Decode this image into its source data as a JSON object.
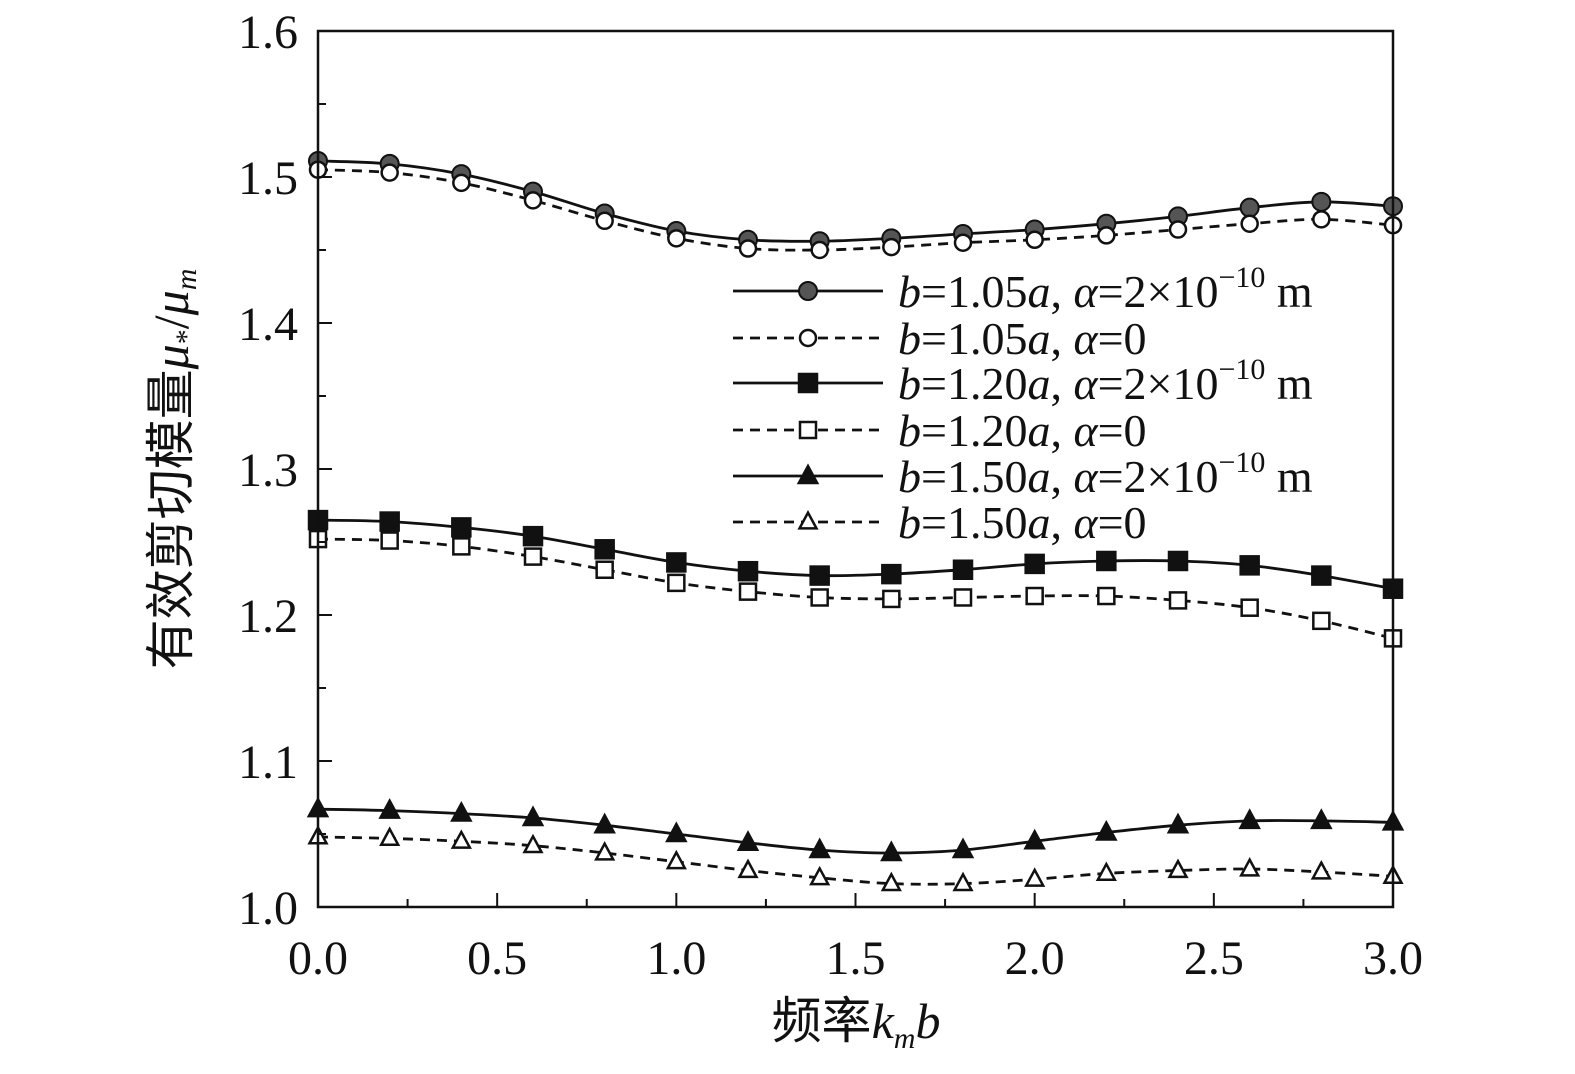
{
  "chart_data": {
    "type": "line",
    "title": "",
    "xlabel": {
      "prefix": "频率",
      "math": "k",
      "sub": "m",
      "suffix": "b"
    },
    "ylabel": {
      "prefix": "有效剪切模量",
      "num": "μ",
      "num_sub": "*",
      "slash": "/",
      "den": "μ",
      "den_sub": "m"
    },
    "xlim": [
      0.0,
      3.0
    ],
    "ylim": [
      1.0,
      1.6
    ],
    "xticks": [
      "0.0",
      "0.5",
      "1.0",
      "1.5",
      "2.0",
      "2.5",
      "3.0"
    ],
    "yticks": [
      "1.0",
      "1.1",
      "1.2",
      "1.3",
      "1.4",
      "1.5",
      "1.6"
    ],
    "x": [
      0.0,
      0.2,
      0.4,
      0.6,
      0.8,
      1.0,
      1.2,
      1.4,
      1.6,
      1.8,
      2.0,
      2.2,
      2.4,
      2.6,
      2.8,
      3.0
    ],
    "grid": false,
    "legend_position": "right",
    "series": [
      {
        "name": "b=1.05a, α=2×10⁻¹⁰ m",
        "b_label": "b",
        "b_val": "=1.05",
        "b_unit": "a",
        "sep": ", ",
        "alpha_label": "α",
        "alpha_val": "=2×10",
        "alpha_exp": "−10",
        "unit": " m",
        "marker": "circle",
        "filled": true,
        "fill_color": "#555555",
        "dashed": false,
        "values": [
          1.511,
          1.509,
          1.502,
          1.49,
          1.475,
          1.463,
          1.457,
          1.456,
          1.458,
          1.461,
          1.464,
          1.468,
          1.473,
          1.479,
          1.483,
          1.48
        ]
      },
      {
        "name": "b=1.05a, α=0",
        "b_label": "b",
        "b_val": "=1.05",
        "b_unit": "a",
        "sep": ", ",
        "alpha_label": "α",
        "alpha_val": "=0",
        "alpha_exp": "",
        "unit": "",
        "marker": "circle",
        "filled": false,
        "fill_color": "#ffffff",
        "dashed": true,
        "values": [
          1.505,
          1.503,
          1.496,
          1.484,
          1.47,
          1.458,
          1.451,
          1.45,
          1.452,
          1.455,
          1.457,
          1.46,
          1.464,
          1.468,
          1.471,
          1.467
        ]
      },
      {
        "name": "b=1.20a, α=2×10⁻¹⁰ m",
        "b_label": "b",
        "b_val": "=1.20",
        "b_unit": "a",
        "sep": ", ",
        "alpha_label": "α",
        "alpha_val": "=2×10",
        "alpha_exp": "−10",
        "unit": " m",
        "marker": "square",
        "filled": true,
        "fill_color": "#111111",
        "dashed": false,
        "values": [
          1.265,
          1.264,
          1.26,
          1.254,
          1.245,
          1.236,
          1.23,
          1.227,
          1.228,
          1.231,
          1.235,
          1.237,
          1.237,
          1.234,
          1.227,
          1.218
        ]
      },
      {
        "name": "b=1.20a, α=0",
        "b_label": "b",
        "b_val": "=1.20",
        "b_unit": "a",
        "sep": ", ",
        "alpha_label": "α",
        "alpha_val": "=0",
        "alpha_exp": "",
        "unit": "",
        "marker": "square",
        "filled": false,
        "fill_color": "#ffffff",
        "dashed": true,
        "values": [
          1.252,
          1.251,
          1.247,
          1.24,
          1.231,
          1.222,
          1.216,
          1.212,
          1.211,
          1.212,
          1.213,
          1.213,
          1.21,
          1.205,
          1.196,
          1.184
        ]
      },
      {
        "name": "b=1.50a, α=2×10⁻¹⁰ m",
        "b_label": "b",
        "b_val": "=1.50",
        "b_unit": "a",
        "sep": ", ",
        "alpha_label": "α",
        "alpha_val": "=2×10",
        "alpha_exp": "−10",
        "unit": " m",
        "marker": "triangle",
        "filled": true,
        "fill_color": "#111111",
        "dashed": false,
        "values": [
          1.067,
          1.066,
          1.064,
          1.061,
          1.056,
          1.05,
          1.044,
          1.039,
          1.037,
          1.039,
          1.045,
          1.051,
          1.056,
          1.059,
          1.059,
          1.058
        ]
      },
      {
        "name": "b=1.50a, α=0",
        "b_label": "b",
        "b_val": "=1.50",
        "b_unit": "a",
        "sep": ", ",
        "alpha_label": "α",
        "alpha_val": "=0",
        "alpha_exp": "",
        "unit": "",
        "marker": "triangle",
        "filled": false,
        "fill_color": "#ffffff",
        "dashed": true,
        "values": [
          1.048,
          1.047,
          1.045,
          1.042,
          1.037,
          1.031,
          1.025,
          1.02,
          1.016,
          1.016,
          1.019,
          1.023,
          1.025,
          1.026,
          1.024,
          1.021
        ]
      }
    ]
  }
}
